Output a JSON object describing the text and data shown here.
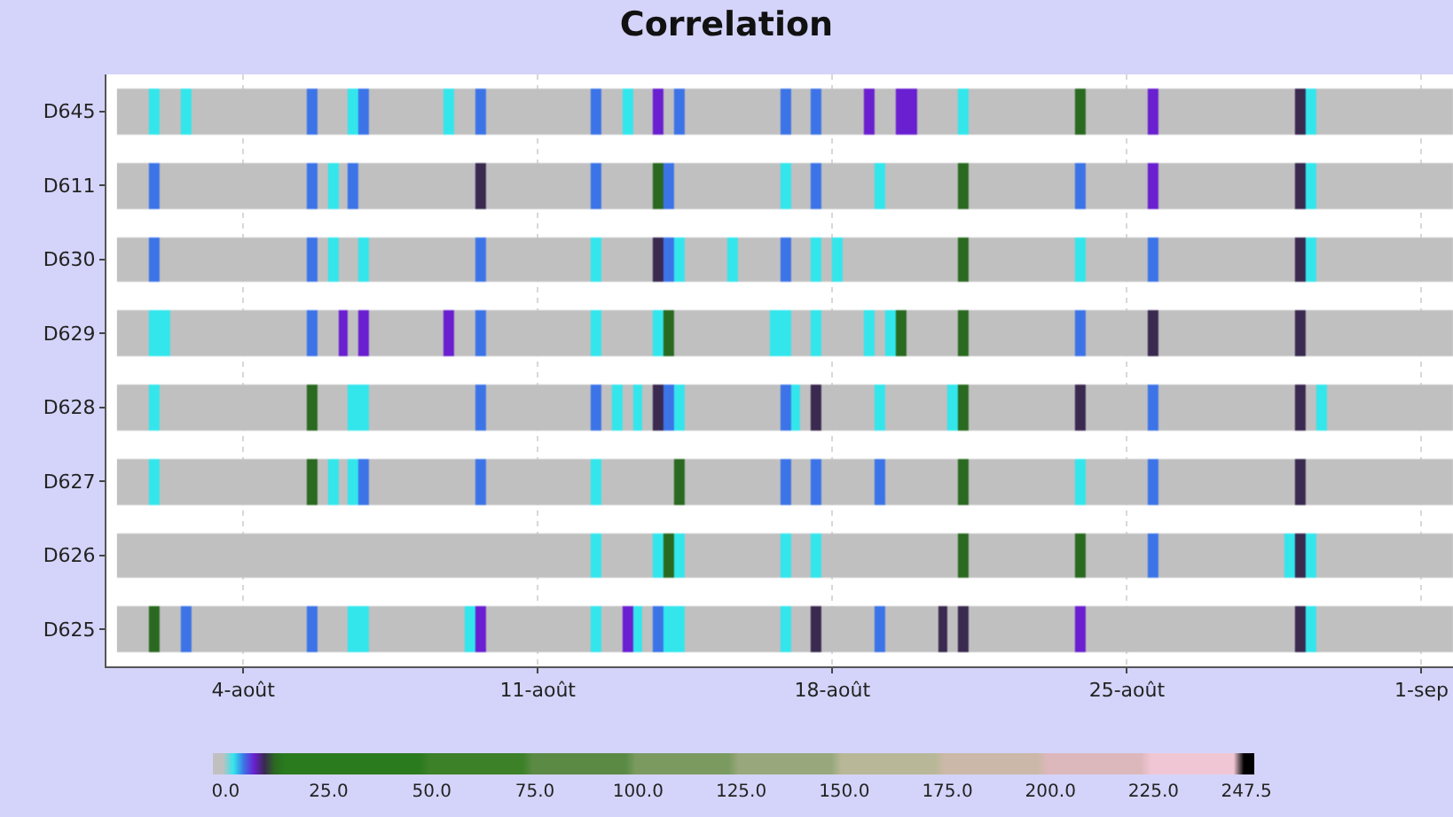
{
  "chart_data": {
    "type": "heatmap",
    "title": "Correlation",
    "grid": "x",
    "xlim": [
      0.75,
      32.75
    ],
    "clim": [
      -3,
      249.5
    ],
    "xticks": [
      {
        "value": 4,
        "label": "4-août"
      },
      {
        "value": 11,
        "label": "11-août"
      },
      {
        "value": 18,
        "label": "18-août"
      },
      {
        "value": 25,
        "label": "25-août"
      },
      {
        "value": 32,
        "label": "1-sep"
      }
    ],
    "cticks": [
      {
        "value": 0,
        "label": "0.0"
      },
      {
        "value": 25,
        "label": "25.0"
      },
      {
        "value": 50,
        "label": "50.0"
      },
      {
        "value": 75,
        "label": "75.0"
      },
      {
        "value": 100,
        "label": "100.0"
      },
      {
        "value": 125,
        "label": "125.0"
      },
      {
        "value": 150,
        "label": "150.0"
      },
      {
        "value": 175,
        "label": "175.0"
      },
      {
        "value": 200,
        "label": "200.0"
      },
      {
        "value": 225,
        "label": "225.0"
      },
      {
        "value": 247.5,
        "label": "247.5"
      }
    ],
    "x": [
      1.125,
      1.375,
      1.625,
      1.875,
      2.125,
      2.375,
      2.625,
      2.875,
      3.125,
      3.375,
      3.625,
      3.875,
      4.125,
      4.375,
      4.625,
      4.875,
      5.125,
      5.375,
      5.625,
      5.875,
      6.125,
      6.375,
      6.625,
      6.875,
      7.125,
      7.375,
      7.625,
      7.875,
      8.125,
      8.375,
      8.625,
      8.875,
      9.125,
      9.375,
      9.625,
      9.875,
      10.125,
      10.375,
      10.625,
      10.875,
      11.125,
      11.375,
      11.625,
      11.875,
      12.125,
      12.375,
      12.625,
      12.875,
      13.125,
      13.375,
      13.625,
      13.875,
      14.125,
      14.375,
      14.625,
      14.875,
      15.125,
      15.375,
      15.625,
      15.875,
      16.125,
      16.375,
      16.625,
      16.875,
      17.125,
      17.375,
      17.625,
      17.875,
      18.125,
      18.375,
      18.625,
      18.875,
      19.125,
      19.375,
      19.625,
      19.875,
      20.125,
      20.375,
      20.625,
      20.875,
      21.125,
      21.375,
      21.625,
      21.875,
      22.125,
      22.375,
      22.625,
      22.875,
      23.125,
      23.375,
      23.625,
      23.875,
      24.125,
      24.375,
      24.625,
      24.875,
      25.125,
      25.375,
      25.625,
      25.875,
      26.125,
      26.375,
      26.625,
      26.875,
      27.125,
      27.375,
      27.625,
      27.875,
      28.125,
      28.375,
      28.625,
      28.875,
      29.125,
      29.375,
      29.625,
      29.875,
      30.125,
      30.375,
      30.625,
      30.875,
      31.125,
      31.375,
      31.625,
      31.875,
      32.125,
      32.375,
      32.625
    ],
    "y_categories": [
      "D645",
      "D611",
      "D630",
      "D629",
      "D628",
      "D627",
      "D626",
      "D625"
    ],
    "cells": [
      [
        -2,
        -2,
        -2,
        2,
        -2,
        -2,
        2,
        -2,
        -2,
        -2,
        -2,
        -2,
        -2,
        -2,
        -2,
        -2,
        -2,
        -2,
        4.5,
        -2,
        -2,
        -2,
        2,
        4.5,
        -2,
        -2,
        -2,
        -2,
        -2,
        -2,
        -2,
        2,
        -2,
        -2,
        4.5,
        -2,
        -2,
        -2,
        -2,
        -2,
        -2,
        -2,
        -2,
        -2,
        -2,
        4.5,
        -2,
        -2,
        2,
        -2,
        -2,
        7,
        -2,
        4.5,
        -2,
        -2,
        -2,
        -2,
        -2,
        -2,
        -2,
        -2,
        -2,
        4.5,
        -2,
        -2,
        4.5,
        -2,
        -2,
        -2,
        -2,
        7,
        -2,
        -2,
        7,
        7,
        -2,
        -2,
        -2,
        -2,
        2,
        -2,
        -2,
        -2,
        -2,
        -2,
        -2,
        -2,
        -2,
        -2,
        -2,
        12,
        -2,
        -2,
        -2,
        -2,
        -2,
        -2,
        7,
        -2,
        -2,
        -2,
        -2,
        -2,
        -2,
        -2,
        -2,
        -2,
        -2,
        -2,
        -2,
        -2,
        9.5,
        2,
        -2,
        -2,
        -2,
        -2,
        -2,
        -2,
        -2,
        -2,
        -2,
        -2,
        -2,
        -2,
        -2
      ],
      [
        -2,
        -2,
        -2,
        4.5,
        -2,
        -2,
        -2,
        -2,
        -2,
        -2,
        -2,
        -2,
        -2,
        -2,
        -2,
        -2,
        -2,
        -2,
        4.5,
        -2,
        2,
        -2,
        4.5,
        -2,
        -2,
        -2,
        -2,
        -2,
        -2,
        -2,
        -2,
        -2,
        -2,
        -2,
        9.5,
        -2,
        -2,
        -2,
        -2,
        -2,
        -2,
        -2,
        -2,
        -2,
        -2,
        4.5,
        -2,
        -2,
        -2,
        -2,
        -2,
        12,
        4.5,
        -2,
        -2,
        -2,
        -2,
        -2,
        -2,
        -2,
        -2,
        -2,
        -2,
        2,
        -2,
        -2,
        4.5,
        -2,
        -2,
        -2,
        -2,
        -2,
        2,
        -2,
        -2,
        -2,
        -2,
        -2,
        -2,
        -2,
        12,
        -2,
        -2,
        -2,
        -2,
        -2,
        -2,
        -2,
        -2,
        -2,
        -2,
        4.5,
        -2,
        -2,
        -2,
        -2,
        -2,
        -2,
        7,
        -2,
        -2,
        -2,
        -2,
        -2,
        -2,
        -2,
        -2,
        -2,
        -2,
        -2,
        -2,
        -2,
        9.5,
        2,
        -2,
        -2,
        -2,
        -2,
        -2,
        -2,
        -2,
        -2,
        -2,
        -2,
        -2,
        -2,
        -2
      ],
      [
        -2,
        -2,
        -2,
        4.5,
        -2,
        -2,
        -2,
        -2,
        -2,
        -2,
        -2,
        -2,
        -2,
        -2,
        -2,
        -2,
        -2,
        -2,
        4.5,
        -2,
        2,
        -2,
        -2,
        2,
        -2,
        -2,
        -2,
        -2,
        -2,
        -2,
        -2,
        -2,
        -2,
        -2,
        4.5,
        -2,
        -2,
        -2,
        -2,
        -2,
        -2,
        -2,
        -2,
        -2,
        -2,
        2,
        -2,
        -2,
        -2,
        -2,
        -2,
        9.5,
        4.5,
        2,
        -2,
        -2,
        -2,
        -2,
        2,
        -2,
        -2,
        -2,
        -2,
        4.5,
        -2,
        -2,
        2,
        -2,
        2,
        -2,
        -2,
        -2,
        -2,
        -2,
        -2,
        -2,
        -2,
        -2,
        -2,
        -2,
        12,
        -2,
        -2,
        -2,
        -2,
        -2,
        -2,
        -2,
        -2,
        -2,
        -2,
        2,
        -2,
        -2,
        -2,
        -2,
        -2,
        -2,
        4.5,
        -2,
        -2,
        -2,
        -2,
        -2,
        -2,
        -2,
        -2,
        -2,
        -2,
        -2,
        -2,
        -2,
        9.5,
        2,
        -2,
        -2,
        -2,
        -2,
        -2,
        -2,
        -2,
        -2,
        -2,
        -2,
        -2,
        -2,
        -2
      ],
      [
        -2,
        -2,
        -2,
        2,
        2,
        -2,
        -2,
        -2,
        -2,
        -2,
        -2,
        -2,
        -2,
        -2,
        -2,
        -2,
        -2,
        -2,
        4.5,
        -2,
        -2,
        7,
        -2,
        7,
        -2,
        -2,
        -2,
        -2,
        -2,
        -2,
        -2,
        7,
        -2,
        -2,
        4.5,
        -2,
        -2,
        -2,
        -2,
        -2,
        -2,
        -2,
        -2,
        -2,
        -2,
        2,
        -2,
        -2,
        -2,
        -2,
        -2,
        2,
        12,
        -2,
        -2,
        -2,
        -2,
        -2,
        -2,
        -2,
        -2,
        -2,
        2,
        2,
        -2,
        -2,
        2,
        -2,
        -2,
        -2,
        -2,
        2,
        -2,
        2,
        12,
        -2,
        -2,
        -2,
        -2,
        -2,
        12,
        -2,
        -2,
        -2,
        -2,
        -2,
        -2,
        -2,
        -2,
        -2,
        -2,
        4.5,
        -2,
        -2,
        -2,
        -2,
        -2,
        -2,
        9.5,
        -2,
        -2,
        -2,
        -2,
        -2,
        -2,
        -2,
        -2,
        -2,
        -2,
        -2,
        -2,
        -2,
        9.5,
        -2,
        -2,
        -2,
        -2,
        -2,
        -2,
        -2,
        -2,
        -2,
        -2,
        -2,
        -2,
        -2,
        -2
      ],
      [
        -2,
        -2,
        -2,
        2,
        -2,
        -2,
        -2,
        -2,
        -2,
        -2,
        -2,
        -2,
        -2,
        -2,
        -2,
        -2,
        -2,
        -2,
        12,
        -2,
        -2,
        -2,
        2,
        2,
        -2,
        -2,
        -2,
        -2,
        -2,
        -2,
        -2,
        -2,
        -2,
        -2,
        4.5,
        -2,
        -2,
        -2,
        -2,
        -2,
        -2,
        -2,
        -2,
        -2,
        -2,
        4.5,
        -2,
        2,
        -2,
        2,
        -2,
        9.5,
        4.5,
        2,
        -2,
        -2,
        -2,
        -2,
        -2,
        -2,
        -2,
        -2,
        -2,
        4.5,
        2,
        -2,
        9.5,
        -2,
        -2,
        -2,
        -2,
        -2,
        2,
        -2,
        -2,
        -2,
        -2,
        -2,
        -2,
        2,
        12,
        -2,
        -2,
        -2,
        -2,
        -2,
        -2,
        -2,
        -2,
        -2,
        -2,
        9.5,
        -2,
        -2,
        -2,
        -2,
        -2,
        -2,
        4.5,
        -2,
        -2,
        -2,
        -2,
        -2,
        -2,
        -2,
        -2,
        -2,
        -2,
        -2,
        -2,
        -2,
        9.5,
        -2,
        2,
        -2,
        -2,
        -2,
        -2,
        -2,
        -2,
        -2,
        -2,
        -2,
        -2,
        -2,
        -2
      ],
      [
        -2,
        -2,
        -2,
        2,
        -2,
        -2,
        -2,
        -2,
        -2,
        -2,
        -2,
        -2,
        -2,
        -2,
        -2,
        -2,
        -2,
        -2,
        12,
        -2,
        2,
        -2,
        2,
        4.5,
        -2,
        -2,
        -2,
        -2,
        -2,
        -2,
        -2,
        -2,
        -2,
        -2,
        4.5,
        -2,
        -2,
        -2,
        -2,
        -2,
        -2,
        -2,
        -2,
        -2,
        -2,
        2,
        -2,
        -2,
        -2,
        -2,
        -2,
        -2,
        -2,
        12,
        -2,
        -2,
        -2,
        -2,
        -2,
        -2,
        -2,
        -2,
        -2,
        4.5,
        -2,
        -2,
        4.5,
        -2,
        -2,
        -2,
        -2,
        -2,
        4.5,
        -2,
        -2,
        -2,
        -2,
        -2,
        -2,
        -2,
        12,
        -2,
        -2,
        -2,
        -2,
        -2,
        -2,
        -2,
        -2,
        -2,
        -2,
        2,
        -2,
        -2,
        -2,
        -2,
        -2,
        -2,
        4.5,
        -2,
        -2,
        -2,
        -2,
        -2,
        -2,
        -2,
        -2,
        -2,
        -2,
        -2,
        -2,
        -2,
        9.5,
        -2,
        -2,
        -2,
        -2,
        -2,
        -2,
        -2,
        -2,
        -2,
        -2,
        -2,
        -2,
        -2,
        -2
      ],
      [
        -2,
        -2,
        -2,
        -2,
        -2,
        -2,
        -2,
        -2,
        -2,
        -2,
        -2,
        -2,
        -2,
        -2,
        -2,
        -2,
        -2,
        -2,
        -2,
        -2,
        -2,
        -2,
        -2,
        -2,
        -2,
        -2,
        -2,
        -2,
        -2,
        -2,
        -2,
        -2,
        -2,
        -2,
        -2,
        -2,
        -2,
        -2,
        -2,
        -2,
        -2,
        -2,
        -2,
        -2,
        -2,
        2,
        -2,
        -2,
        -2,
        -2,
        -2,
        2,
        12,
        2,
        -2,
        -2,
        -2,
        -2,
        -2,
        -2,
        -2,
        -2,
        -2,
        2,
        -2,
        -2,
        2,
        -2,
        -2,
        -2,
        -2,
        -2,
        -2,
        -2,
        -2,
        -2,
        -2,
        -2,
        -2,
        -2,
        12,
        -2,
        -2,
        -2,
        -2,
        -2,
        -2,
        -2,
        -2,
        -2,
        -2,
        12,
        -2,
        -2,
        -2,
        -2,
        -2,
        -2,
        4.5,
        -2,
        -2,
        -2,
        -2,
        -2,
        -2,
        -2,
        -2,
        -2,
        -2,
        -2,
        -2,
        2,
        9.5,
        2,
        -2,
        -2,
        -2,
        -2,
        -2,
        -2,
        -2,
        -2,
        -2,
        -2,
        -2,
        -2,
        -2
      ],
      [
        -2,
        -2,
        -2,
        12,
        -2,
        -2,
        4.5,
        -2,
        -2,
        -2,
        -2,
        -2,
        -2,
        -2,
        -2,
        -2,
        -2,
        -2,
        4.5,
        -2,
        -2,
        -2,
        2,
        2,
        -2,
        -2,
        -2,
        -2,
        -2,
        -2,
        -2,
        -2,
        -2,
        2,
        7,
        -2,
        -2,
        -2,
        -2,
        -2,
        -2,
        -2,
        -2,
        -2,
        -2,
        2,
        -2,
        -2,
        7,
        2,
        -2,
        4.5,
        2,
        2,
        -2,
        -2,
        -2,
        -2,
        -2,
        -2,
        -2,
        -2,
        -2,
        2,
        -2,
        -2,
        9.5,
        -2,
        -2,
        -2,
        -2,
        -2,
        4.5,
        -2,
        -2,
        -2,
        -2,
        -2,
        9.5,
        -2,
        9.5,
        -2,
        -2,
        -2,
        -2,
        -2,
        -2,
        -2,
        -2,
        -2,
        -2,
        7,
        -2,
        -2,
        -2,
        -2,
        -2,
        -2,
        -2,
        -2,
        -2,
        -2,
        -2,
        -2,
        -2,
        -2,
        -2,
        -2,
        -2,
        -2,
        -2,
        -2,
        9.5,
        2,
        -2,
        -2,
        -2,
        -2,
        -2,
        -2,
        -2,
        -2,
        -2,
        -2,
        -2,
        -2,
        -2
      ]
    ],
    "colors": [
      "#c0c0c0",
      "#c0c0c0",
      "#33e6ec",
      "#3c74e8",
      "#6a1fd0",
      "#3a2a50",
      "#2a6a20",
      "#2a7a1e",
      "#2a7a1e",
      "#2a7a1e",
      "#2a7a1e",
      "#2a7a1e",
      "#2a7a1e",
      "#2a7a1e",
      "#2a7a1e",
      "#2a7a1e",
      "#2a7a1e",
      "#2a7a1e",
      "#2a7a1e",
      "#2a7a1e",
      "#2a7a1e",
      "#3c8028",
      "#3c8028",
      "#3c8028",
      "#3c8028",
      "#3c8028",
      "#3c8028",
      "#3c8028",
      "#3c8028",
      "#3c8028",
      "#3c8028",
      "#5a8a44",
      "#5a8a44",
      "#5a8a44",
      "#5a8a44",
      "#5a8a44",
      "#5a8a44",
      "#5a8a44",
      "#5a8a44",
      "#5a8a44",
      "#5a8a44",
      "#7a9a60",
      "#7a9a60",
      "#7a9a60",
      "#7a9a60",
      "#7a9a60",
      "#7a9a60",
      "#7a9a60",
      "#7a9a60",
      "#7a9a60",
      "#7a9a60",
      "#98a87c",
      "#98a87c",
      "#98a87c",
      "#98a87c",
      "#98a87c",
      "#98a87c",
      "#98a87c",
      "#98a87c",
      "#98a87c",
      "#98a87c",
      "#b8b898",
      "#b8b898",
      "#b8b898",
      "#b8b898",
      "#b8b898",
      "#b8b898",
      "#b8b898",
      "#b8b898",
      "#b8b898",
      "#b8b898",
      "#ccb8a8",
      "#ccb8a8",
      "#ccb8a8",
      "#ccb8a8",
      "#ccb8a8",
      "#ccb8a8",
      "#ccb8a8",
      "#ccb8a8",
      "#ccb8a8",
      "#ccb8a8",
      "#dcb8bc",
      "#dcb8bc",
      "#dcb8bc",
      "#dcb8bc",
      "#dcb8bc",
      "#dcb8bc",
      "#dcb8bc",
      "#dcb8bc",
      "#dcb8bc",
      "#dcb8bc",
      "#f0c6d4",
      "#f0c6d4",
      "#f0c6d4",
      "#f0c6d4",
      "#f0c6d4",
      "#f0c6d4",
      "#f0c6d4",
      "#f0c6d4",
      "#f0c6d4",
      "#000000",
      "#000000"
    ]
  }
}
